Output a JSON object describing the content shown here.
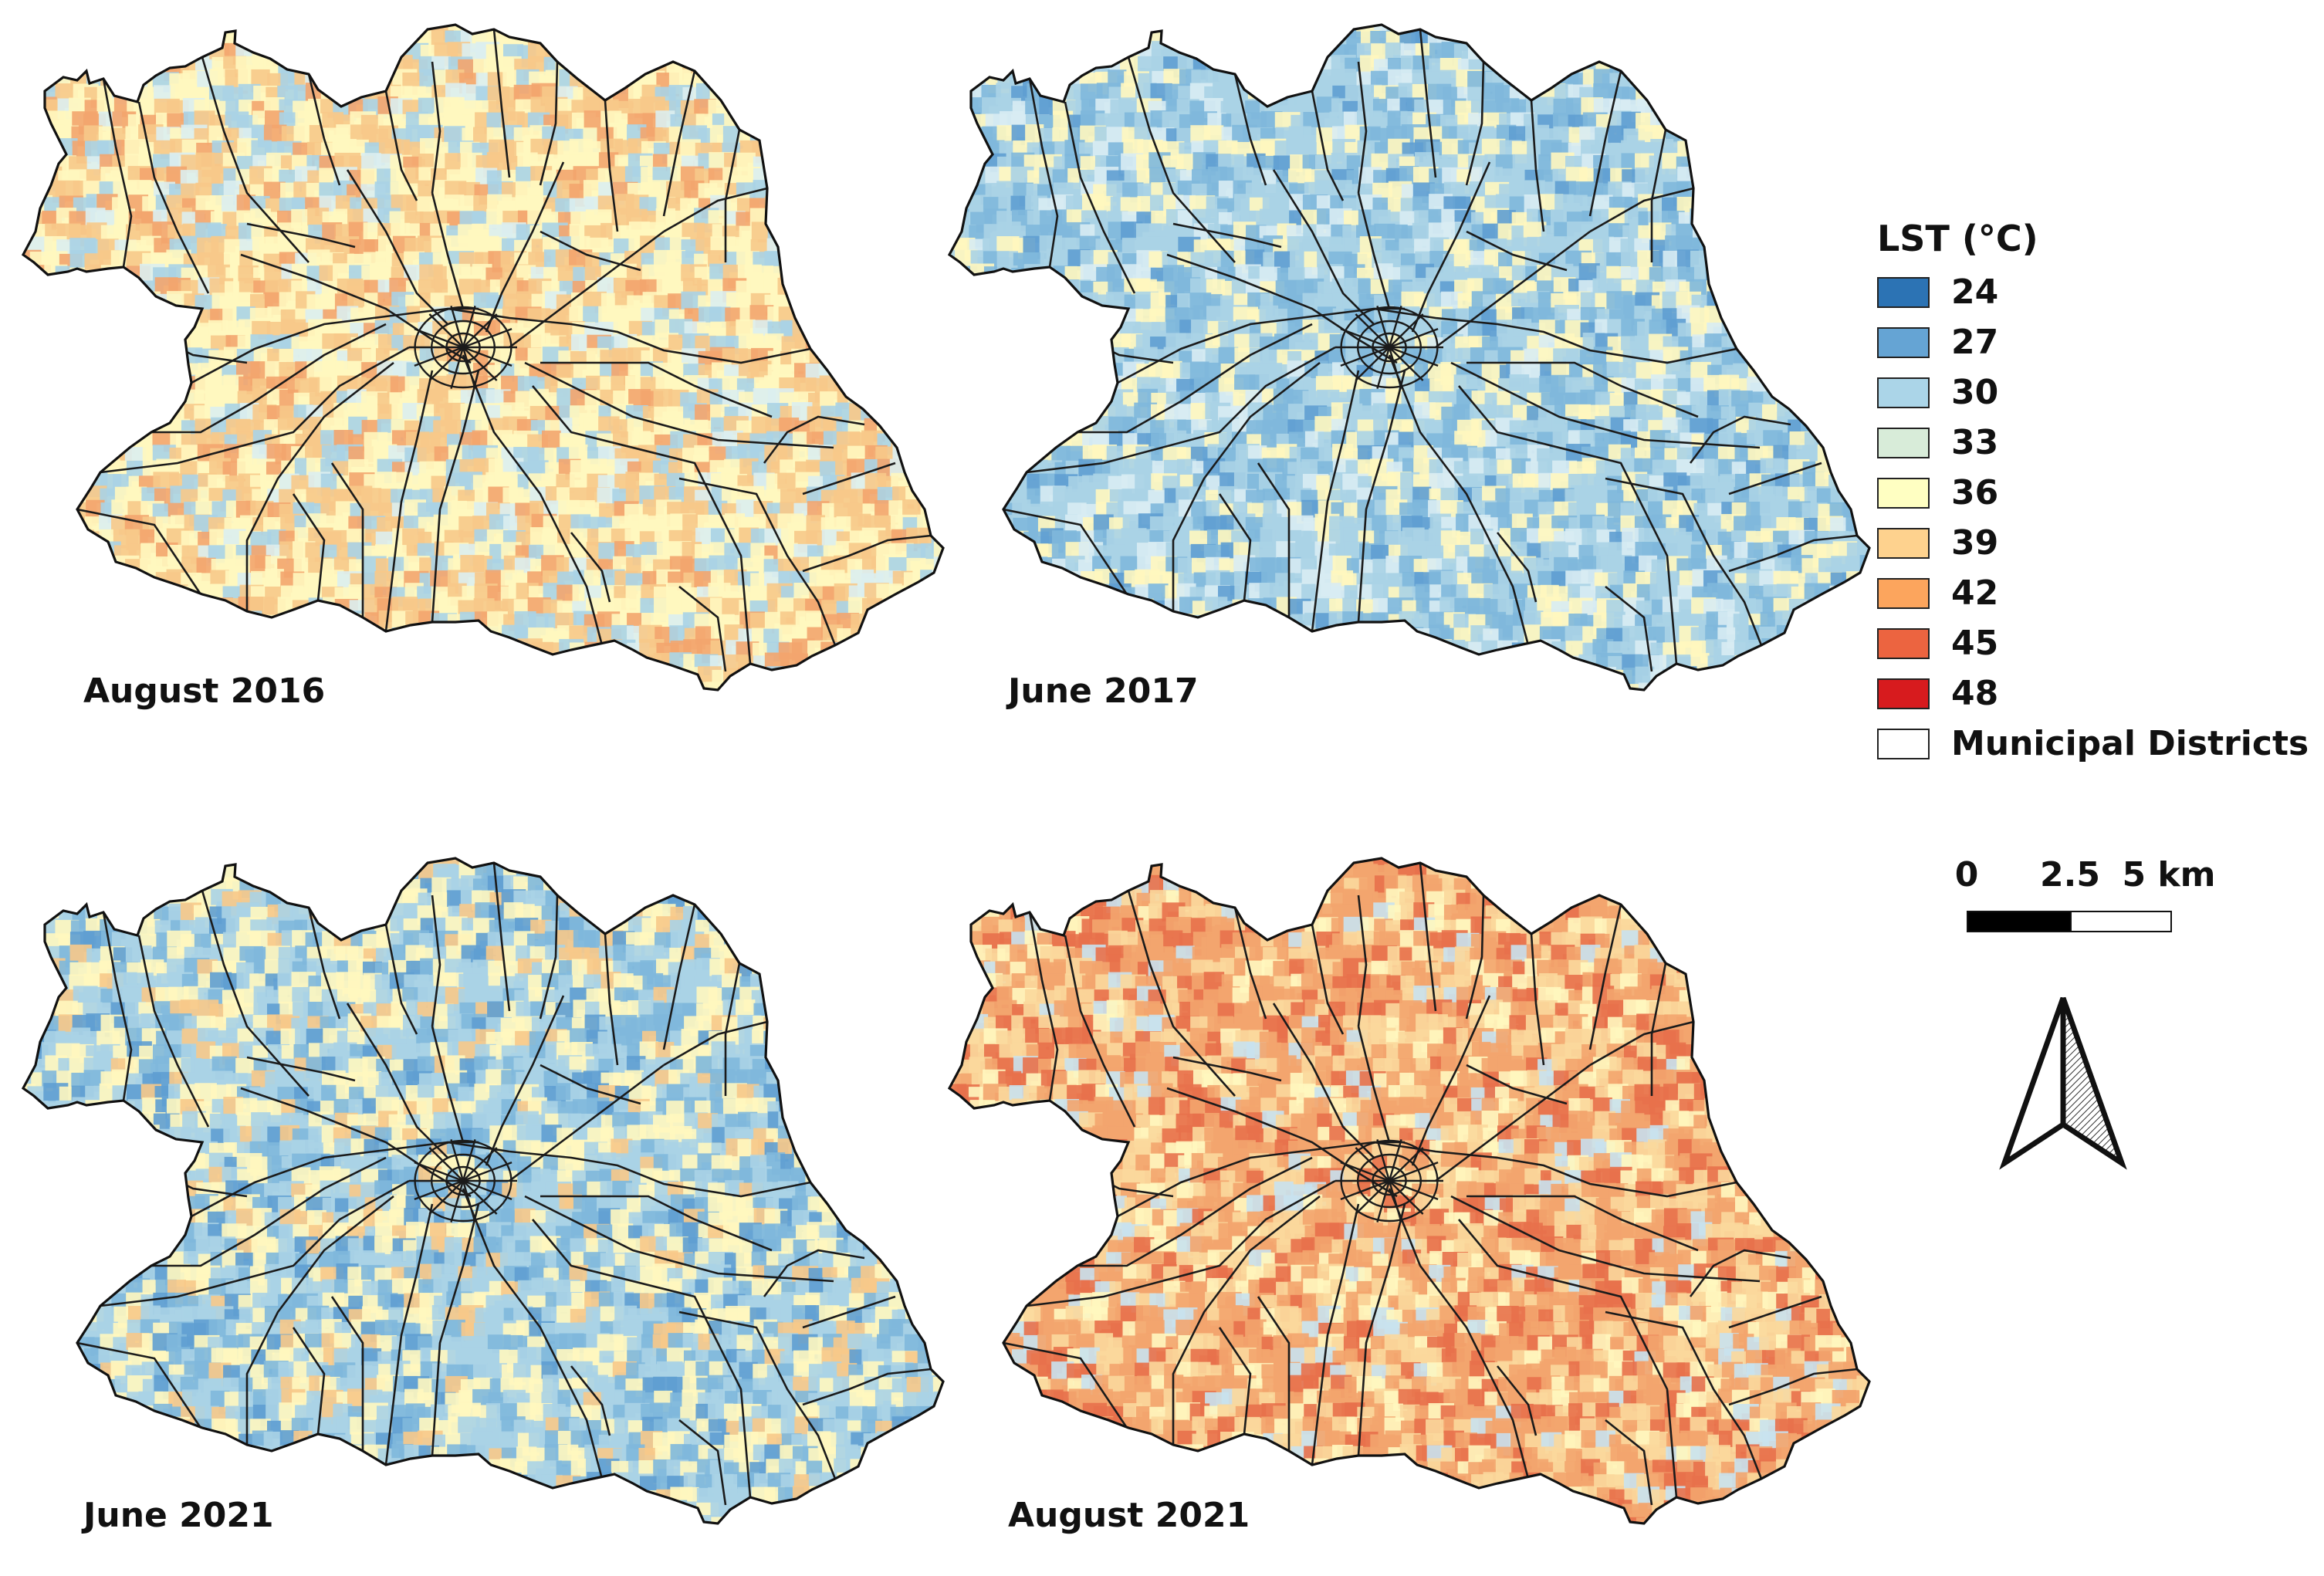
{
  "panels": [
    {
      "caption": "August 2016",
      "palette": [
        "#fff7bf",
        "#f7c98a",
        "#aad3e6",
        "#f3a56e",
        "#dceef0"
      ],
      "weights": [
        0.36,
        0.28,
        0.16,
        0.12,
        0.08
      ]
    },
    {
      "caption": "June 2017",
      "palette": [
        "#aad3e6",
        "#80b8dc",
        "#fff7bf",
        "#d8ecf3",
        "#5f9fd1"
      ],
      "weights": [
        0.38,
        0.24,
        0.2,
        0.12,
        0.06
      ]
    },
    {
      "caption": "June 2021",
      "palette": [
        "#aad3e6",
        "#fff7bf",
        "#80b8dc",
        "#f7c98a",
        "#5f9fd1"
      ],
      "weights": [
        0.34,
        0.28,
        0.2,
        0.1,
        0.08
      ]
    },
    {
      "caption": "August 2021",
      "palette": [
        "#f3a56e",
        "#fbd89c",
        "#e8714b",
        "#fff7bf",
        "#c9e2ee"
      ],
      "weights": [
        0.36,
        0.26,
        0.18,
        0.12,
        0.08
      ]
    }
  ],
  "legend": {
    "title": "LST (°C)",
    "items": [
      {
        "label": "24",
        "color": "#2c73b4"
      },
      {
        "label": "27",
        "color": "#65a4d4"
      },
      {
        "label": "30",
        "color": "#abd5e8"
      },
      {
        "label": "33",
        "color": "#d8ecd9"
      },
      {
        "label": "36",
        "color": "#ffffc2"
      },
      {
        "label": "39",
        "color": "#fed28e"
      },
      {
        "label": "42",
        "color": "#fca55d"
      },
      {
        "label": "45",
        "color": "#ec6440"
      },
      {
        "label": "48",
        "color": "#d71b1e"
      }
    ],
    "districts_label": "Municipal Districts"
  },
  "scalebar": {
    "label_0": "0",
    "label_mid": "2.5",
    "label_end": "5 km"
  },
  "north_arrow": {
    "icon": "north-arrow-icon"
  }
}
